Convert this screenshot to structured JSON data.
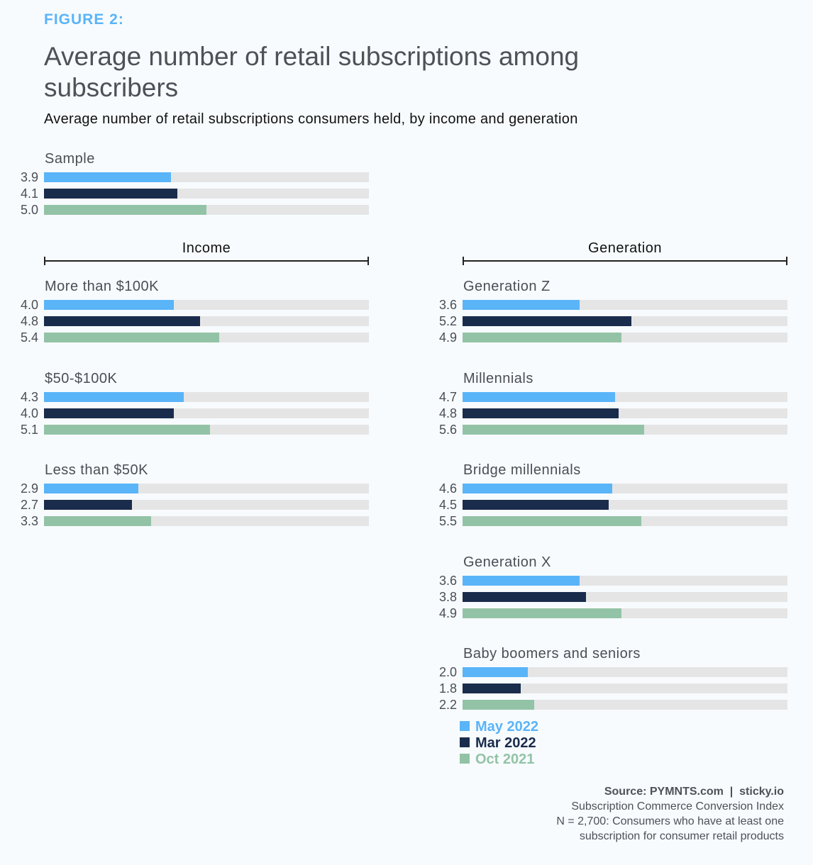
{
  "header": {
    "figure_label": "FIGURE 2:",
    "title": "Average number of retail subscriptions among subscribers",
    "subtitle": "Average number of retail subscriptions consumers held, by income and generation"
  },
  "colors": {
    "May 2022": "#5ab4f8",
    "Mar 2022": "#1a2c4c",
    "Oct 2021": "#93c3a6",
    "track": "#e5e5e5"
  },
  "chart_data": {
    "type": "bar",
    "orientation": "horizontal",
    "title": "Average number of retail subscriptions among subscribers",
    "subtitle": "Average number of retail subscriptions consumers held, by income and generation",
    "xlim": [
      0,
      10
    ],
    "grid": false,
    "legend_position": "bottom-right",
    "series_names": [
      "May 2022",
      "Mar 2022",
      "Oct 2021"
    ],
    "sections": [
      {
        "name": "",
        "groups": [
          {
            "label": "Sample",
            "values": [
              3.9,
              4.1,
              5.0
            ]
          }
        ]
      },
      {
        "name": "Income",
        "groups": [
          {
            "label": "More than $100K",
            "values": [
              4.0,
              4.8,
              5.4
            ]
          },
          {
            "label": "$50-$100K",
            "values": [
              4.3,
              4.0,
              5.1
            ]
          },
          {
            "label": "Less than $50K",
            "values": [
              2.9,
              2.7,
              3.3
            ]
          }
        ]
      },
      {
        "name": "Generation",
        "groups": [
          {
            "label": "Generation Z",
            "values": [
              3.6,
              5.2,
              4.9
            ]
          },
          {
            "label": "Millennials",
            "values": [
              4.7,
              4.8,
              5.6
            ]
          },
          {
            "label": "Bridge millennials",
            "values": [
              4.6,
              4.5,
              5.5
            ]
          },
          {
            "label": "Generation X",
            "values": [
              3.6,
              3.8,
              4.9
            ]
          },
          {
            "label": "Baby boomers and seniors",
            "values": [
              2.0,
              1.8,
              2.2
            ]
          }
        ]
      }
    ]
  },
  "legend": [
    {
      "label": "May 2022"
    },
    {
      "label": "Mar 2022"
    },
    {
      "label": "Oct 2021"
    }
  ],
  "source": {
    "line1": "Source: PYMNTS.com  |  sticky.io",
    "line2": "Subscription Commerce Conversion Index",
    "line3": "N = 2,700: Consumers who have at least one",
    "line4": "subscription for consumer retail products"
  }
}
